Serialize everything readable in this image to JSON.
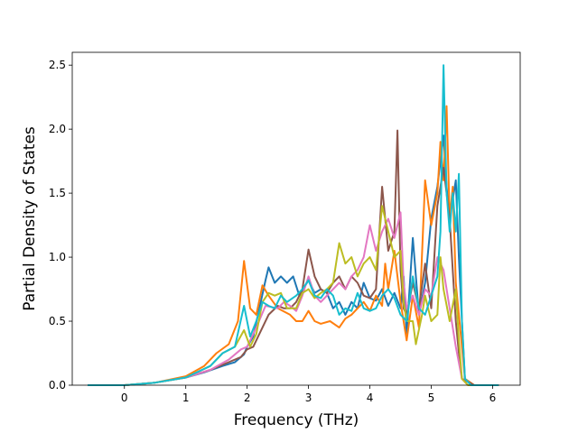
{
  "chart_data": {
    "type": "line",
    "title": "",
    "xlabel": "Frequency (THz)",
    "ylabel": "Partial Density of States",
    "xlim": [
      -0.85,
      6.45
    ],
    "ylim": [
      0.0,
      2.6
    ],
    "xticks": [
      0,
      1,
      2,
      3,
      4,
      5,
      6
    ],
    "yticks": [
      0.0,
      0.5,
      1.0,
      1.5,
      2.0,
      2.5
    ],
    "xtick_labels": [
      "0",
      "1",
      "2",
      "3",
      "4",
      "5",
      "6"
    ],
    "ytick_labels": [
      "0.0",
      "0.5",
      "1.0",
      "1.5",
      "2.0",
      "2.5"
    ],
    "grid": false,
    "legend": "none",
    "series": [
      {
        "color": "#1f77b4",
        "points": [
          [
            -0.6,
            0
          ],
          [
            0,
            0.0
          ],
          [
            0.5,
            0.02
          ],
          [
            1.0,
            0.06
          ],
          [
            1.3,
            0.1
          ],
          [
            1.6,
            0.15
          ],
          [
            1.8,
            0.18
          ],
          [
            1.95,
            0.24
          ],
          [
            2.0,
            0.3
          ],
          [
            2.1,
            0.38
          ],
          [
            2.2,
            0.6
          ],
          [
            2.3,
            0.82
          ],
          [
            2.35,
            0.92
          ],
          [
            2.45,
            0.8
          ],
          [
            2.55,
            0.85
          ],
          [
            2.65,
            0.8
          ],
          [
            2.75,
            0.85
          ],
          [
            2.85,
            0.7
          ],
          [
            3.0,
            0.82
          ],
          [
            3.1,
            0.72
          ],
          [
            3.2,
            0.75
          ],
          [
            3.3,
            0.72
          ],
          [
            3.4,
            0.6
          ],
          [
            3.5,
            0.65
          ],
          [
            3.6,
            0.55
          ],
          [
            3.7,
            0.65
          ],
          [
            3.8,
            0.6
          ],
          [
            3.9,
            0.8
          ],
          [
            4.0,
            0.68
          ],
          [
            4.1,
            0.66
          ],
          [
            4.2,
            0.75
          ],
          [
            4.3,
            0.62
          ],
          [
            4.4,
            0.72
          ],
          [
            4.5,
            0.6
          ],
          [
            4.55,
            0.85
          ],
          [
            4.6,
            0.4
          ],
          [
            4.7,
            1.15
          ],
          [
            4.8,
            0.55
          ],
          [
            4.9,
            0.8
          ],
          [
            5.0,
            1.3
          ],
          [
            5.1,
            1.55
          ],
          [
            5.2,
            1.95
          ],
          [
            5.25,
            1.55
          ],
          [
            5.3,
            1.3
          ],
          [
            5.4,
            1.6
          ],
          [
            5.45,
            1.0
          ],
          [
            5.5,
            0.5
          ],
          [
            5.55,
            0.05
          ],
          [
            5.7,
            0
          ],
          [
            6.1,
            0
          ]
        ]
      },
      {
        "color": "#ff7f0e",
        "points": [
          [
            -0.6,
            0
          ],
          [
            0,
            0.0
          ],
          [
            0.5,
            0.02
          ],
          [
            1.0,
            0.07
          ],
          [
            1.3,
            0.15
          ],
          [
            1.5,
            0.25
          ],
          [
            1.7,
            0.32
          ],
          [
            1.85,
            0.5
          ],
          [
            1.95,
            0.97
          ],
          [
            2.05,
            0.6
          ],
          [
            2.15,
            0.55
          ],
          [
            2.25,
            0.78
          ],
          [
            2.35,
            0.7
          ],
          [
            2.5,
            0.6
          ],
          [
            2.7,
            0.55
          ],
          [
            2.8,
            0.5
          ],
          [
            2.9,
            0.5
          ],
          [
            3.0,
            0.58
          ],
          [
            3.1,
            0.5
          ],
          [
            3.2,
            0.48
          ],
          [
            3.35,
            0.5
          ],
          [
            3.5,
            0.45
          ],
          [
            3.6,
            0.52
          ],
          [
            3.7,
            0.55
          ],
          [
            3.8,
            0.6
          ],
          [
            3.9,
            0.65
          ],
          [
            4.0,
            0.58
          ],
          [
            4.1,
            0.7
          ],
          [
            4.2,
            0.62
          ],
          [
            4.25,
            0.95
          ],
          [
            4.3,
            0.75
          ],
          [
            4.4,
            1.05
          ],
          [
            4.5,
            0.65
          ],
          [
            4.6,
            0.35
          ],
          [
            4.7,
            0.7
          ],
          [
            4.8,
            0.45
          ],
          [
            4.9,
            1.6
          ],
          [
            5.0,
            1.25
          ],
          [
            5.1,
            1.5
          ],
          [
            5.15,
            1.9
          ],
          [
            5.2,
            1.6
          ],
          [
            5.25,
            2.18
          ],
          [
            5.3,
            1.3
          ],
          [
            5.35,
            1.55
          ],
          [
            5.4,
            0.8
          ],
          [
            5.5,
            0.3
          ],
          [
            5.55,
            0.05
          ],
          [
            5.7,
            0
          ],
          [
            6.1,
            0
          ]
        ]
      },
      {
        "color": "#8c564b",
        "points": [
          [
            -0.6,
            0
          ],
          [
            0,
            0.0
          ],
          [
            0.5,
            0.02
          ],
          [
            1.0,
            0.06
          ],
          [
            1.4,
            0.12
          ],
          [
            1.7,
            0.18
          ],
          [
            1.9,
            0.22
          ],
          [
            2.0,
            0.28
          ],
          [
            2.1,
            0.3
          ],
          [
            2.2,
            0.4
          ],
          [
            2.35,
            0.55
          ],
          [
            2.5,
            0.62
          ],
          [
            2.6,
            0.6
          ],
          [
            2.7,
            0.6
          ],
          [
            2.8,
            0.65
          ],
          [
            2.9,
            0.75
          ],
          [
            3.0,
            1.06
          ],
          [
            3.1,
            0.85
          ],
          [
            3.2,
            0.75
          ],
          [
            3.3,
            0.72
          ],
          [
            3.4,
            0.8
          ],
          [
            3.5,
            0.85
          ],
          [
            3.6,
            0.75
          ],
          [
            3.7,
            0.85
          ],
          [
            3.8,
            0.8
          ],
          [
            3.9,
            0.7
          ],
          [
            4.0,
            0.68
          ],
          [
            4.1,
            0.75
          ],
          [
            4.2,
            1.55
          ],
          [
            4.3,
            1.05
          ],
          [
            4.4,
            1.2
          ],
          [
            4.45,
            1.99
          ],
          [
            4.5,
            0.9
          ],
          [
            4.55,
            0.6
          ],
          [
            4.6,
            0.55
          ],
          [
            4.7,
            0.8
          ],
          [
            4.8,
            0.6
          ],
          [
            4.9,
            0.95
          ],
          [
            5.0,
            0.6
          ],
          [
            5.1,
            1.4
          ],
          [
            5.2,
            1.7
          ],
          [
            5.3,
            1.3
          ],
          [
            5.4,
            0.5
          ],
          [
            5.45,
            0.25
          ],
          [
            5.5,
            0.05
          ],
          [
            5.7,
            0
          ],
          [
            6.1,
            0
          ]
        ]
      },
      {
        "color": "#e377c2",
        "points": [
          [
            -0.6,
            0
          ],
          [
            0,
            0.0
          ],
          [
            0.5,
            0.02
          ],
          [
            1.0,
            0.06
          ],
          [
            1.4,
            0.12
          ],
          [
            1.7,
            0.2
          ],
          [
            1.9,
            0.28
          ],
          [
            2.0,
            0.3
          ],
          [
            2.15,
            0.45
          ],
          [
            2.3,
            0.62
          ],
          [
            2.5,
            0.6
          ],
          [
            2.6,
            0.65
          ],
          [
            2.7,
            0.62
          ],
          [
            2.8,
            0.58
          ],
          [
            2.9,
            0.7
          ],
          [
            3.0,
            0.85
          ],
          [
            3.1,
            0.7
          ],
          [
            3.2,
            0.65
          ],
          [
            3.3,
            0.7
          ],
          [
            3.5,
            0.8
          ],
          [
            3.6,
            0.75
          ],
          [
            3.7,
            0.85
          ],
          [
            3.8,
            0.9
          ],
          [
            3.9,
            1.0
          ],
          [
            4.0,
            1.25
          ],
          [
            4.1,
            1.05
          ],
          [
            4.2,
            1.2
          ],
          [
            4.3,
            1.3
          ],
          [
            4.4,
            1.15
          ],
          [
            4.5,
            1.35
          ],
          [
            4.55,
            0.8
          ],
          [
            4.6,
            0.6
          ],
          [
            4.7,
            0.7
          ],
          [
            4.8,
            0.55
          ],
          [
            4.9,
            0.75
          ],
          [
            5.0,
            0.7
          ],
          [
            5.1,
            1.0
          ],
          [
            5.2,
            0.9
          ],
          [
            5.3,
            0.6
          ],
          [
            5.4,
            0.3
          ],
          [
            5.5,
            0.05
          ],
          [
            5.6,
            0
          ],
          [
            6.1,
            0
          ]
        ]
      },
      {
        "color": "#bcbd22",
        "points": [
          [
            -0.6,
            0
          ],
          [
            0,
            0.0
          ],
          [
            0.5,
            0.02
          ],
          [
            1.0,
            0.06
          ],
          [
            1.4,
            0.15
          ],
          [
            1.6,
            0.25
          ],
          [
            1.8,
            0.3
          ],
          [
            1.95,
            0.43
          ],
          [
            2.05,
            0.3
          ],
          [
            2.15,
            0.4
          ],
          [
            2.25,
            0.65
          ],
          [
            2.35,
            0.72
          ],
          [
            2.45,
            0.7
          ],
          [
            2.55,
            0.72
          ],
          [
            2.65,
            0.6
          ],
          [
            2.8,
            0.6
          ],
          [
            2.9,
            0.72
          ],
          [
            3.0,
            0.75
          ],
          [
            3.1,
            0.68
          ],
          [
            3.2,
            0.72
          ],
          [
            3.3,
            0.75
          ],
          [
            3.4,
            0.8
          ],
          [
            3.5,
            1.11
          ],
          [
            3.6,
            0.95
          ],
          [
            3.7,
            1.0
          ],
          [
            3.8,
            0.85
          ],
          [
            3.9,
            0.95
          ],
          [
            4.0,
            1.0
          ],
          [
            4.1,
            0.9
          ],
          [
            4.2,
            1.4
          ],
          [
            4.3,
            1.2
          ],
          [
            4.4,
            1.0
          ],
          [
            4.5,
            1.05
          ],
          [
            4.55,
            0.65
          ],
          [
            4.6,
            0.5
          ],
          [
            4.7,
            0.5
          ],
          [
            4.75,
            0.32
          ],
          [
            4.85,
            0.55
          ],
          [
            4.9,
            0.7
          ],
          [
            5.0,
            0.5
          ],
          [
            5.1,
            0.55
          ],
          [
            5.15,
            1.0
          ],
          [
            5.2,
            0.75
          ],
          [
            5.3,
            0.5
          ],
          [
            5.4,
            0.75
          ],
          [
            5.45,
            0.35
          ],
          [
            5.5,
            0.05
          ],
          [
            5.6,
            0
          ],
          [
            6.1,
            0
          ]
        ]
      },
      {
        "color": "#17becf",
        "points": [
          [
            -0.6,
            0
          ],
          [
            0,
            0.0
          ],
          [
            0.5,
            0.02
          ],
          [
            1.0,
            0.06
          ],
          [
            1.4,
            0.15
          ],
          [
            1.6,
            0.25
          ],
          [
            1.8,
            0.3
          ],
          [
            1.95,
            0.62
          ],
          [
            2.05,
            0.38
          ],
          [
            2.15,
            0.5
          ],
          [
            2.25,
            0.65
          ],
          [
            2.35,
            0.62
          ],
          [
            2.45,
            0.6
          ],
          [
            2.55,
            0.7
          ],
          [
            2.65,
            0.65
          ],
          [
            2.8,
            0.7
          ],
          [
            2.9,
            0.75
          ],
          [
            3.0,
            0.82
          ],
          [
            3.1,
            0.7
          ],
          [
            3.2,
            0.68
          ],
          [
            3.3,
            0.75
          ],
          [
            3.4,
            0.7
          ],
          [
            3.5,
            0.55
          ],
          [
            3.6,
            0.6
          ],
          [
            3.7,
            0.58
          ],
          [
            3.8,
            0.72
          ],
          [
            3.9,
            0.6
          ],
          [
            4.0,
            0.58
          ],
          [
            4.1,
            0.6
          ],
          [
            4.2,
            0.7
          ],
          [
            4.3,
            0.75
          ],
          [
            4.4,
            0.68
          ],
          [
            4.5,
            0.55
          ],
          [
            4.6,
            0.5
          ],
          [
            4.7,
            0.85
          ],
          [
            4.8,
            0.6
          ],
          [
            4.9,
            0.55
          ],
          [
            5.0,
            0.7
          ],
          [
            5.1,
            0.85
          ],
          [
            5.15,
            1.2
          ],
          [
            5.2,
            2.5
          ],
          [
            5.25,
            1.5
          ],
          [
            5.3,
            1.2
          ],
          [
            5.35,
            1.5
          ],
          [
            5.4,
            1.2
          ],
          [
            5.45,
            1.65
          ],
          [
            5.5,
            0.5
          ],
          [
            5.55,
            0.05
          ],
          [
            5.65,
            0
          ],
          [
            6.1,
            0
          ]
        ]
      }
    ]
  }
}
